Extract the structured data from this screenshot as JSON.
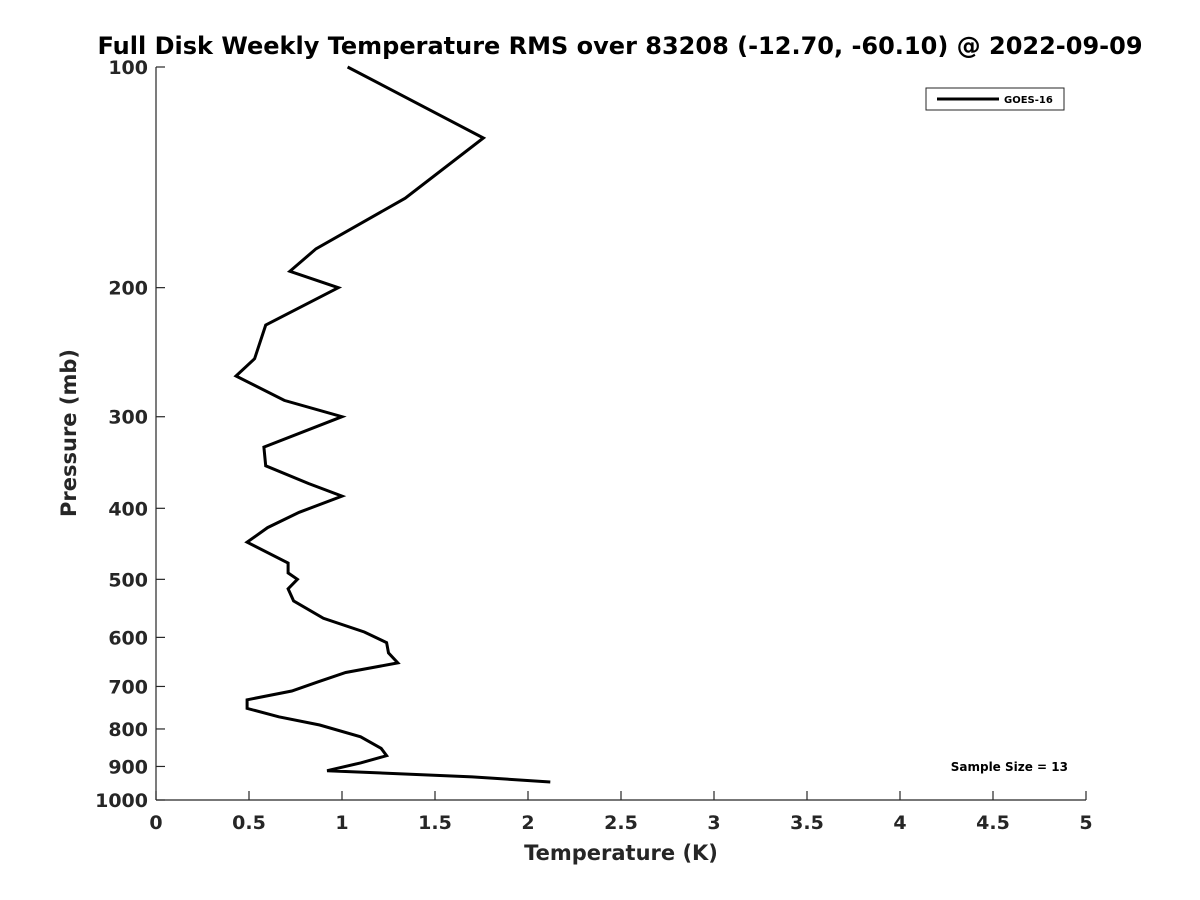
{
  "chart_data": {
    "type": "line",
    "title": "Full Disk Weekly Temperature RMS over 83208 (-12.70, -60.10) @ 2022-09-09",
    "xlabel": "Temperature (K)",
    "ylabel": "Pressure (mb)",
    "xlim": [
      0,
      5
    ],
    "ylim": [
      100,
      1000
    ],
    "y_scale": "log",
    "y_reversed": true,
    "x_ticks": [
      "0",
      "0.5",
      "1",
      "1.5",
      "2",
      "2.5",
      "3",
      "3.5",
      "4",
      "4.5",
      "5"
    ],
    "y_ticks": [
      "100",
      "200",
      "300",
      "400",
      "500",
      "600",
      "700",
      "800",
      "900",
      "1000"
    ],
    "grid": false,
    "legend_position": "top-right",
    "series": [
      {
        "name": "GOES-16",
        "color": "#000000",
        "x": [
          1.03,
          1.76,
          1.34,
          0.86,
          0.72,
          0.98,
          0.59,
          0.53,
          0.43,
          0.69,
          1.0,
          0.58,
          0.59,
          0.82,
          1.0,
          0.77,
          0.6,
          0.49,
          0.71,
          0.71,
          0.76,
          0.71,
          0.74,
          0.9,
          1.12,
          1.24,
          1.25,
          1.3,
          1.02,
          0.87,
          0.73,
          0.49,
          0.49,
          0.66,
          0.88,
          1.1,
          1.21,
          1.24,
          1.1,
          0.92,
          1.7,
          2.12
        ],
        "y": [
          100,
          125,
          151,
          177,
          190,
          200,
          225,
          250,
          264,
          285,
          300,
          330,
          350,
          370,
          385,
          405,
          425,
          445,
          475,
          490,
          500,
          515,
          535,
          565,
          590,
          610,
          630,
          650,
          670,
          690,
          710,
          730,
          750,
          770,
          790,
          820,
          850,
          870,
          890,
          912,
          930,
          945
        ]
      }
    ],
    "annotations": [
      "Sample Size = 13"
    ]
  }
}
